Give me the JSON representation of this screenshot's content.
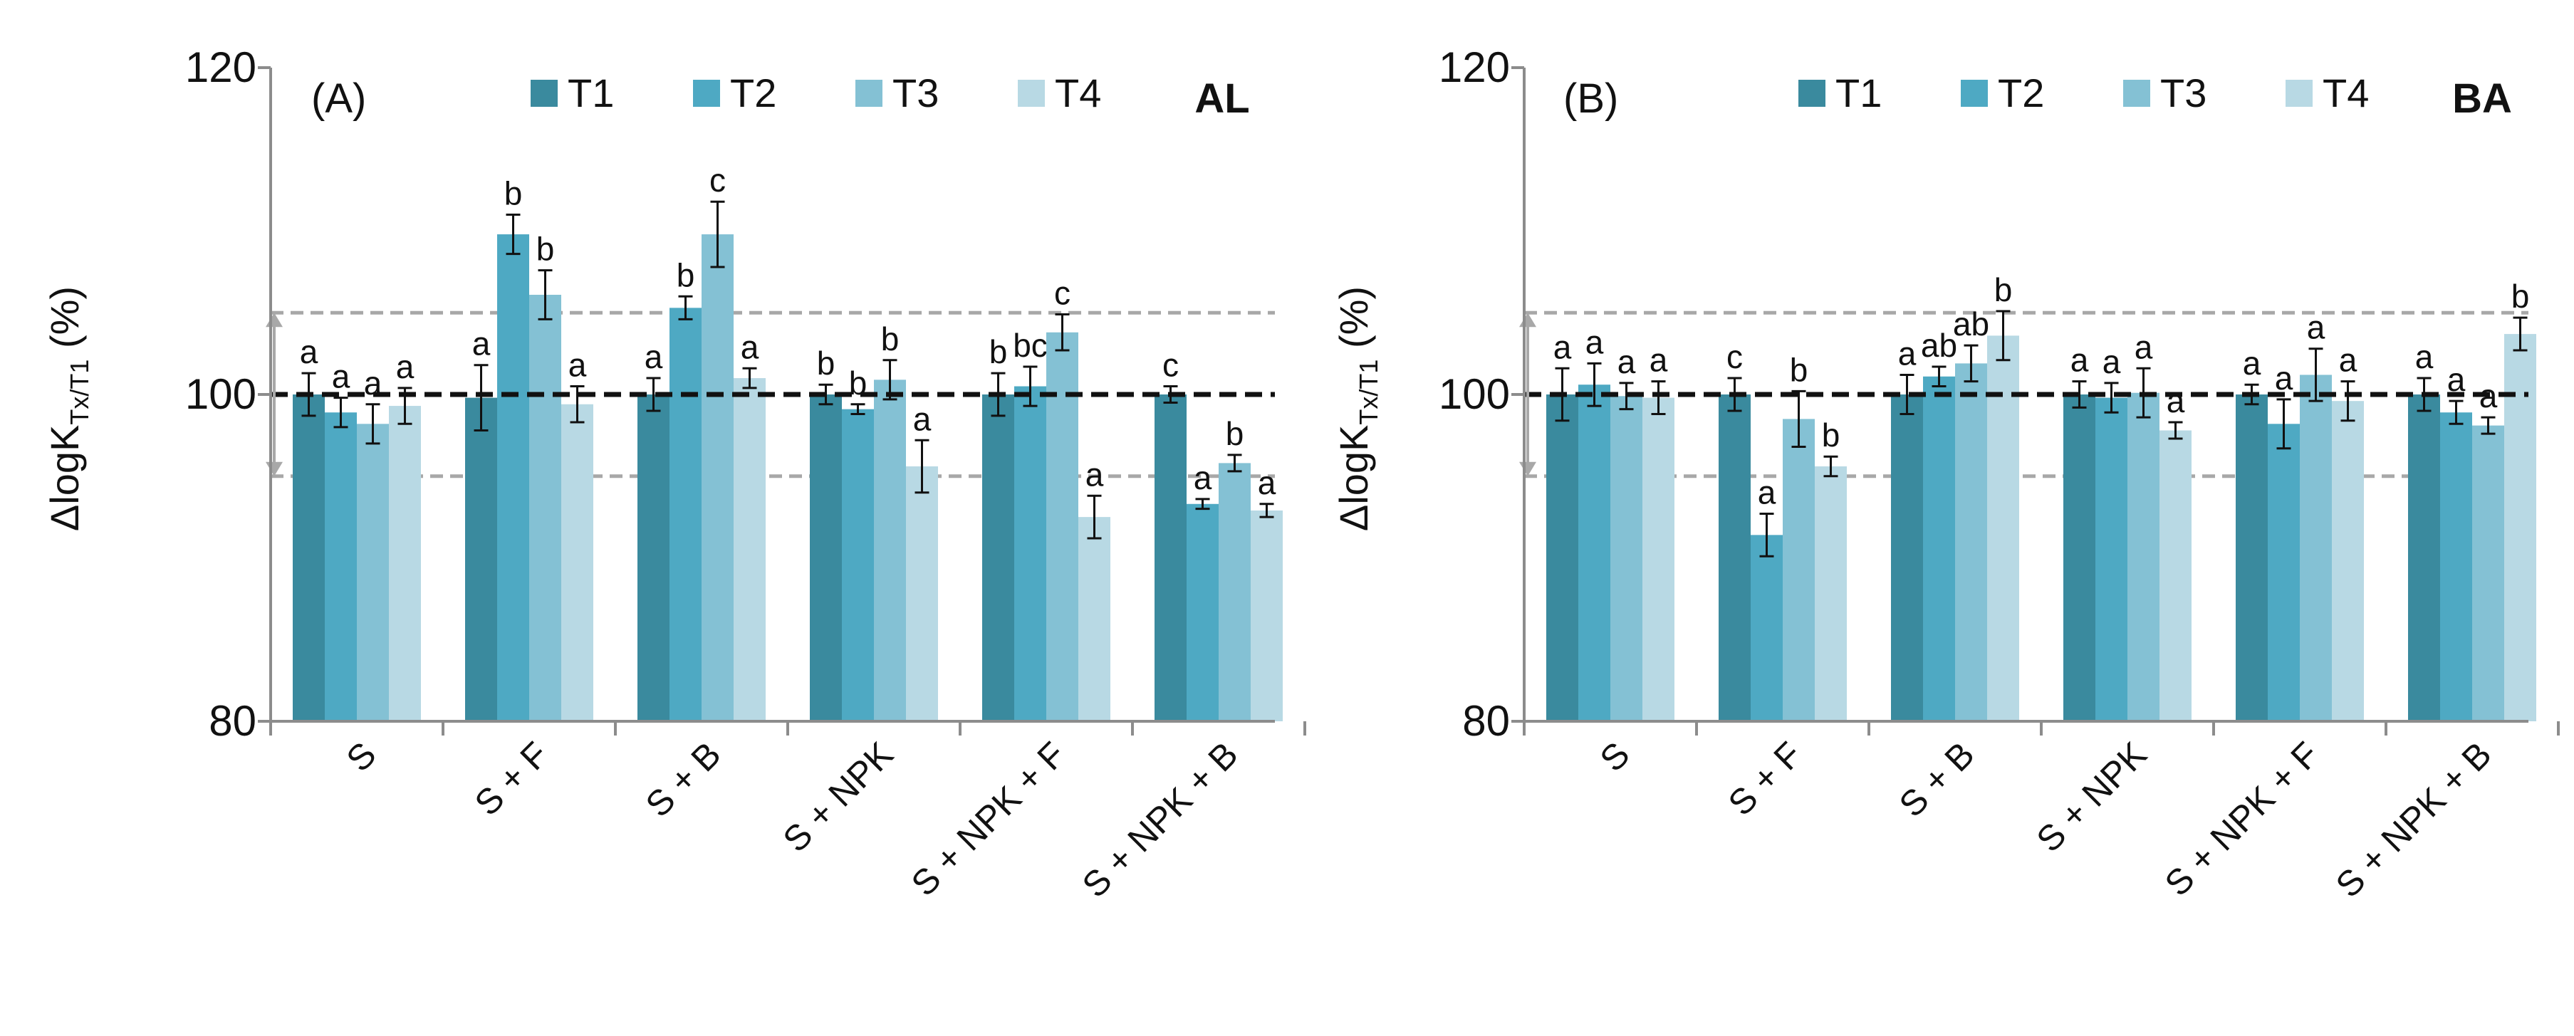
{
  "legend_labels": [
    "T1",
    "T2",
    "T3",
    "T4"
  ],
  "colors": {
    "T1": "#3a8a9e",
    "T2": "#4ea9c3",
    "T3": "#84c1d4",
    "T4": "#b8d9e4",
    "reference_line": "#111111",
    "band_line": "#a8a8a8",
    "axis": "#8c8c8c"
  },
  "chart_data": [
    {
      "type": "bar",
      "panel_label": "(A)",
      "site_label": "AL",
      "ylabel_prefix": "ΔlogK",
      "ylabel_subscript": "Tx/T1",
      "ylabel_suffix": " (%)",
      "ylim": [
        80,
        120
      ],
      "yticks": [
        "80",
        "100",
        "120"
      ],
      "reference_line": 100,
      "band_lines": [
        105,
        95
      ],
      "categories": [
        "S",
        "S + F",
        "S + B",
        "S + NPK",
        "S + NPK + F",
        "S + NPK + B"
      ],
      "series": [
        {
          "name": "T1",
          "values": [
            100,
            99.8,
            100,
            100,
            100,
            100
          ],
          "errors": [
            1.3,
            2.0,
            1.0,
            0.6,
            1.3,
            0.5
          ],
          "letters": [
            "a",
            "a",
            "a",
            "b",
            "b",
            "c"
          ]
        },
        {
          "name": "T2",
          "values": [
            98.9,
            109.8,
            105.3,
            99.1,
            100.5,
            93.3
          ],
          "errors": [
            0.9,
            1.2,
            0.7,
            0.3,
            1.2,
            0.3
          ],
          "letters": [
            "a",
            "b",
            "b",
            "b",
            "bc",
            "a"
          ]
        },
        {
          "name": "T3",
          "values": [
            98.2,
            106.1,
            109.8,
            100.9,
            103.8,
            95.8
          ],
          "errors": [
            1.2,
            1.5,
            2.0,
            1.2,
            1.1,
            0.5
          ],
          "letters": [
            "a",
            "b",
            "c",
            "b",
            "c",
            "b"
          ]
        },
        {
          "name": "T4",
          "values": [
            99.3,
            99.4,
            101,
            95.6,
            92.5,
            92.9
          ],
          "errors": [
            1.1,
            1.1,
            0.6,
            1.6,
            1.3,
            0.4
          ],
          "letters": [
            "a",
            "a",
            "a",
            "a",
            "a",
            "a"
          ]
        }
      ]
    },
    {
      "type": "bar",
      "panel_label": "(B)",
      "site_label": "BA",
      "ylabel_prefix": "ΔlogK",
      "ylabel_subscript": "Tx/T1",
      "ylabel_suffix": " (%)",
      "ylim": [
        80,
        120
      ],
      "yticks": [
        "80",
        "100",
        "120"
      ],
      "reference_line": 100,
      "band_lines": [
        105,
        95
      ],
      "categories": [
        "S",
        "S + F",
        "S + B",
        "S + NPK",
        "S + NPK + F",
        "S + NPK + B"
      ],
      "series": [
        {
          "name": "T1",
          "values": [
            100,
            100,
            100,
            100,
            100,
            100
          ],
          "errors": [
            1.6,
            1.0,
            1.2,
            0.8,
            0.6,
            1.0
          ],
          "letters": [
            "a",
            "c",
            "a",
            "a",
            "a",
            "a"
          ]
        },
        {
          "name": "T2",
          "values": [
            100.6,
            91.4,
            101.1,
            99.8,
            98.2,
            98.9
          ],
          "errors": [
            1.3,
            1.3,
            0.6,
            0.9,
            1.5,
            0.7
          ],
          "letters": [
            "a",
            "a",
            "ab",
            "a",
            "a",
            "a"
          ]
        },
        {
          "name": "T3",
          "values": [
            99.9,
            98.5,
            101.9,
            100.1,
            101.2,
            98.1
          ],
          "errors": [
            0.8,
            1.7,
            1.1,
            1.5,
            1.6,
            0.5
          ],
          "letters": [
            "a",
            "b",
            "ab",
            "a",
            "a",
            "a"
          ]
        },
        {
          "name": "T4",
          "values": [
            99.8,
            95.6,
            103.6,
            97.8,
            99.6,
            103.7
          ],
          "errors": [
            1.0,
            0.6,
            1.5,
            0.5,
            1.2,
            1.0
          ],
          "letters": [
            "a",
            "b",
            "b",
            "a",
            "a",
            "b"
          ]
        }
      ]
    }
  ]
}
